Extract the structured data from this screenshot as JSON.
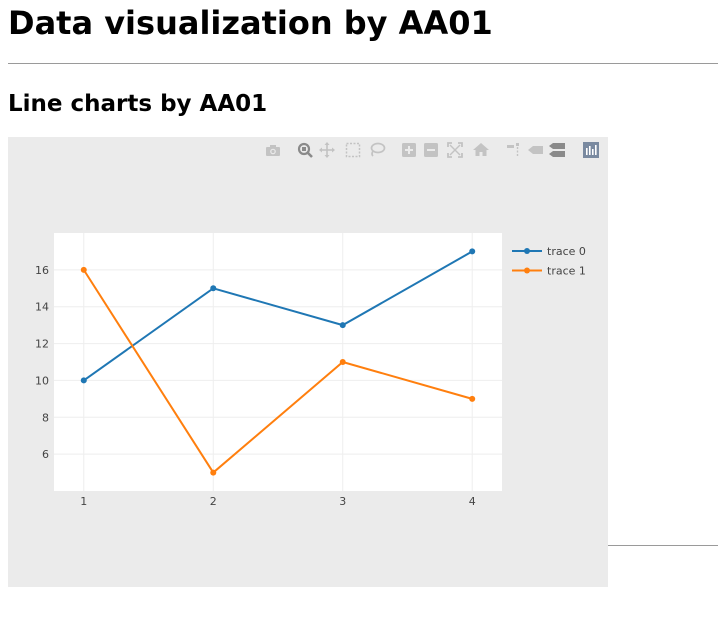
{
  "page": {
    "title": "Data visualization by AA01",
    "section_title": "Line charts by AA01"
  },
  "modebar": {
    "buttons": [
      "camera-icon",
      "zoom-icon",
      "pan-icon",
      "box-select-icon",
      "lasso-select-icon",
      "zoom-in-icon",
      "zoom-out-icon",
      "autoscale-icon",
      "reset-axes-icon",
      "spike-lines-icon",
      "hover-closest-icon",
      "hover-compare-icon",
      "plotly-logo-icon"
    ]
  },
  "chart_data": {
    "type": "line",
    "x": [
      1,
      2,
      3,
      4
    ],
    "series": [
      {
        "name": "trace 0",
        "values": [
          10,
          15,
          13,
          17
        ],
        "color": "#1f77b4"
      },
      {
        "name": "trace 1",
        "values": [
          16,
          5,
          11,
          9
        ],
        "color": "#ff7f0e"
      }
    ],
    "xticks": [
      1,
      2,
      3,
      4
    ],
    "yticks": [
      6,
      8,
      10,
      12,
      14,
      16
    ],
    "xlim": [
      0.77,
      4.23
    ],
    "ylim": [
      4.0,
      18.0
    ],
    "grid": true,
    "legend": "top-right",
    "colors": {
      "paper_bg": "#ebebeb",
      "plot_bg": "#ffffff",
      "grid": "#eeeeee",
      "tick_text": "#444444"
    }
  }
}
